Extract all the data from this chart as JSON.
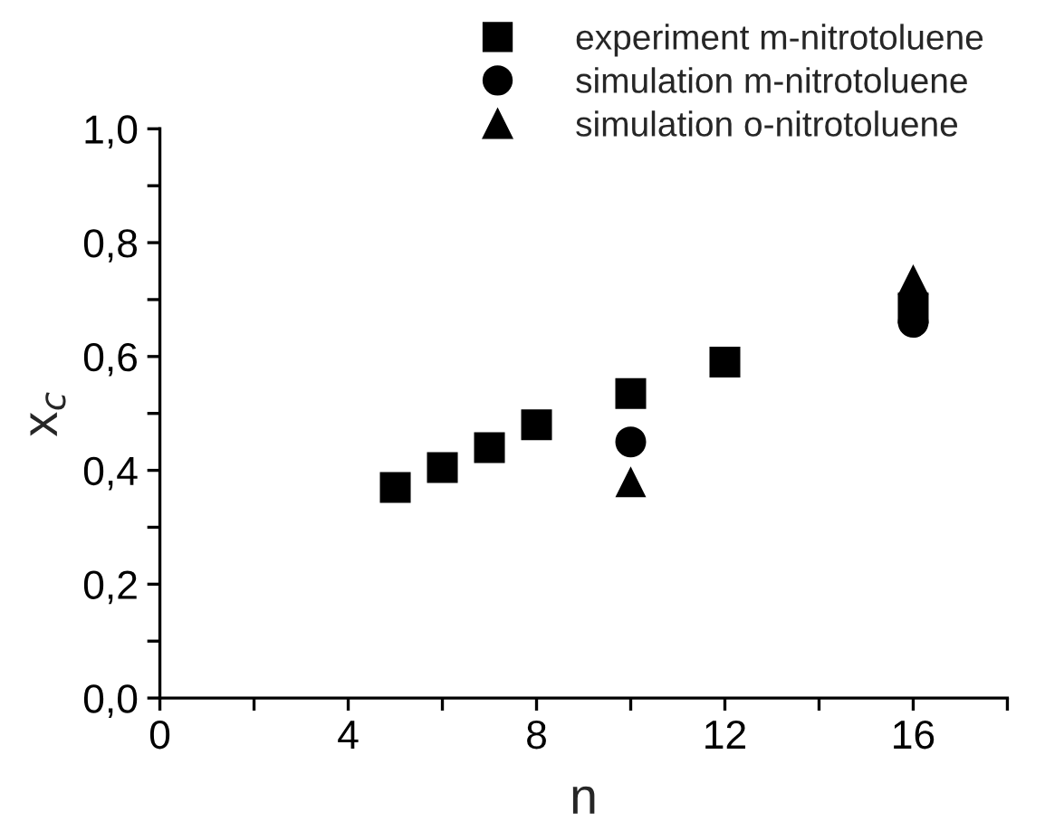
{
  "chart_data": {
    "type": "scatter",
    "xlabel": "n",
    "ylabel": "x$_{c}$",
    "xlim": [
      0,
      18
    ],
    "ylim": [
      0,
      1.0
    ],
    "xticks": [
      0,
      {
        "value": 2,
        "label": null
      },
      4,
      {
        "value": 6,
        "label": null
      },
      8,
      {
        "value": 10,
        "label": null
      },
      12,
      {
        "value": 14,
        "label": null
      },
      16,
      {
        "value": 18,
        "label": null
      }
    ],
    "yticks": [
      {
        "value": 0,
        "label": "0,0"
      },
      {
        "value": 0.1,
        "label": null
      },
      {
        "value": 0.2,
        "label": "0,2"
      },
      {
        "value": 0.3,
        "label": null
      },
      {
        "value": 0.4,
        "label": "0,4"
      },
      {
        "value": 0.5,
        "label": null
      },
      {
        "value": 0.6,
        "label": "0,6"
      },
      {
        "value": 0.7,
        "label": null
      },
      {
        "value": 0.8,
        "label": "0,8"
      },
      {
        "value": 0.9,
        "label": null
      },
      {
        "value": 1.0,
        "label": "1,0"
      }
    ],
    "grid": false,
    "legend": "top right",
    "series": [
      {
        "name": "experiment m-nitrotoluene",
        "color": "#000000",
        "marker": "square",
        "x": [
          5,
          6,
          7,
          8,
          10,
          12,
          16
        ],
        "values": [
          0.37,
          0.405,
          0.44,
          0.48,
          0.535,
          0.59,
          0.685
        ]
      },
      {
        "name": "simulation m-nitrotoluene",
        "color": "#000000",
        "marker": "circle",
        "x": [
          10,
          16
        ],
        "values": [
          0.45,
          0.66
        ]
      },
      {
        "name": "simulation o-nitrotoluene",
        "color": "#000000",
        "marker": "triangle",
        "x": [
          10,
          16
        ],
        "values": [
          0.38,
          0.735
        ]
      }
    ]
  }
}
